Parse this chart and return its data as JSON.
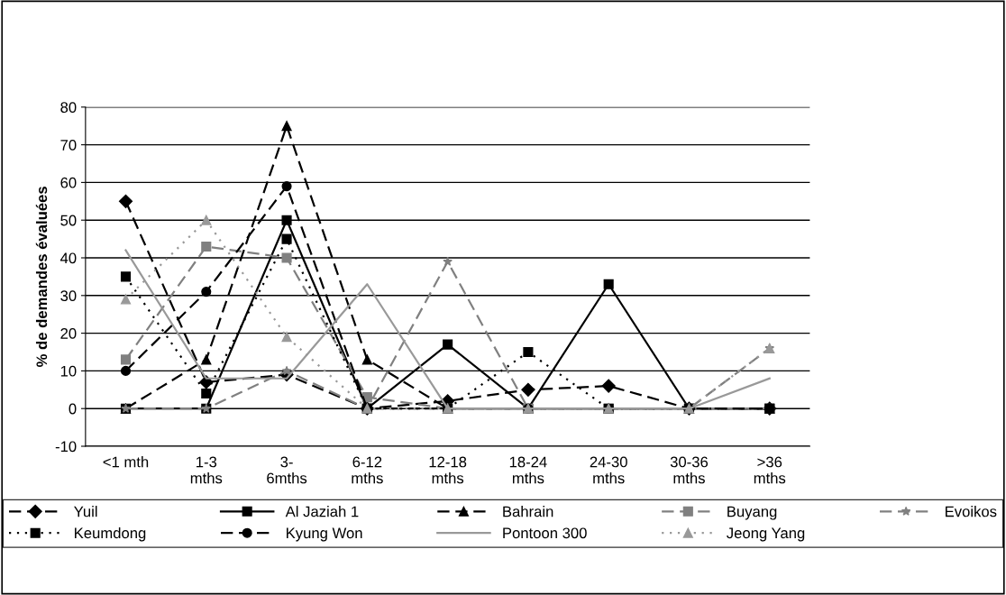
{
  "chart_data": {
    "type": "line",
    "ylabel": "% de demandes évaluées",
    "categories": [
      "<1 mth",
      "1-3\nmths",
      "3-\n6mths",
      "6-12\nmths",
      "12-18\nmths",
      "18-24\nmths",
      "24-30\nmths",
      "30-36\nmths",
      ">36\nmths"
    ],
    "series": [
      {
        "name": "Yuil",
        "color": "#000000",
        "line_style": "dashed",
        "marker": "diamond",
        "values": [
          55,
          7,
          9,
          0,
          2,
          5,
          6,
          0,
          0
        ]
      },
      {
        "name": "Al Jaziah 1",
        "color": "#000000",
        "line_style": "solid",
        "marker": "square",
        "values": [
          0,
          0,
          50,
          0,
          17,
          0,
          33,
          0,
          0
        ]
      },
      {
        "name": "Bahrain",
        "color": "#000000",
        "line_style": "dashed",
        "marker": "triangle",
        "values": [
          0,
          13,
          75,
          13,
          0,
          0,
          0,
          0,
          0
        ]
      },
      {
        "name": "Buyang",
        "color": "#808080",
        "line_style": "dashed",
        "marker": "square",
        "values": [
          13,
          43,
          40,
          3,
          0,
          0,
          0,
          0,
          0
        ]
      },
      {
        "name": "Evoikos",
        "color": "#808080",
        "line_style": "dashed",
        "marker": "star",
        "values": [
          0,
          0,
          10,
          0,
          39,
          0,
          0,
          0,
          16
        ]
      },
      {
        "name": "Keumdong",
        "color": "#000000",
        "line_style": "dotted",
        "marker": "square",
        "values": [
          35,
          4,
          45,
          0,
          0,
          15,
          0,
          0,
          0
        ]
      },
      {
        "name": "Kyung Won",
        "color": "#000000",
        "line_style": "dashed",
        "marker": "circle",
        "values": [
          10,
          31,
          59,
          0,
          0,
          0,
          0,
          0,
          0
        ]
      },
      {
        "name": "Pontoon 300",
        "color": "#999999",
        "line_style": "solid",
        "marker": "none",
        "values": [
          42,
          8,
          8,
          33,
          0,
          0,
          0,
          0,
          8
        ]
      },
      {
        "name": "Jeong Yang",
        "color": "#999999",
        "line_style": "dotted",
        "marker": "triangle",
        "values": [
          29,
          50,
          19,
          0,
          0,
          0,
          0,
          0,
          16
        ]
      }
    ],
    "ylim": [
      -10,
      80
    ],
    "yticks": [
      -10,
      0,
      10,
      20,
      30,
      40,
      50,
      60,
      70,
      80
    ],
    "grid": "y",
    "legend": "bottom"
  }
}
